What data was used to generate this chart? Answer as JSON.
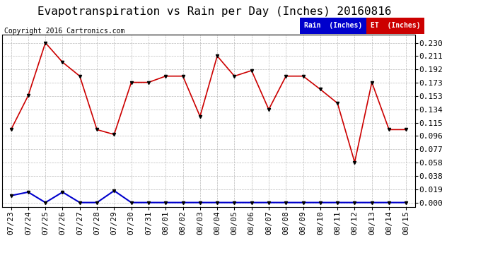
{
  "title": "Evapotranspiration vs Rain per Day (Inches) 20160816",
  "copyright": "Copyright 2016 Cartronics.com",
  "dates": [
    "07/23",
    "07/24",
    "07/25",
    "07/26",
    "07/27",
    "07/28",
    "07/29",
    "07/30",
    "07/31",
    "08/01",
    "08/02",
    "08/03",
    "08/04",
    "08/05",
    "08/06",
    "08/07",
    "08/08",
    "08/09",
    "08/10",
    "08/11",
    "08/12",
    "08/13",
    "08/14",
    "08/15"
  ],
  "et_values": [
    0.105,
    0.154,
    0.23,
    0.202,
    0.182,
    0.105,
    0.098,
    0.173,
    0.173,
    0.182,
    0.182,
    0.124,
    0.211,
    0.182,
    0.19,
    0.134,
    0.182,
    0.182,
    0.163,
    0.143,
    0.058,
    0.173,
    0.105,
    0.105
  ],
  "rain_values": [
    0.01,
    0.015,
    0.0,
    0.015,
    0.0,
    0.0,
    0.017,
    0.0,
    0.0,
    0.0,
    0.0,
    0.0,
    0.0,
    0.0,
    0.0,
    0.0,
    0.0,
    0.0,
    0.0,
    0.0,
    0.0,
    0.0,
    0.0,
    0.0
  ],
  "yticks": [
    0.0,
    0.019,
    0.038,
    0.058,
    0.077,
    0.096,
    0.115,
    0.134,
    0.153,
    0.173,
    0.192,
    0.211,
    0.23
  ],
  "ylim": [
    -0.006,
    0.242
  ],
  "bg_color": "#ffffff",
  "grid_color": "#bbbbbb",
  "et_color": "#cc0000",
  "rain_color": "#0000cc",
  "legend_rain_bg": "#0000cc",
  "legend_et_bg": "#cc0000",
  "title_fontsize": 11.5,
  "tick_fontsize": 8,
  "copyright_fontsize": 7
}
